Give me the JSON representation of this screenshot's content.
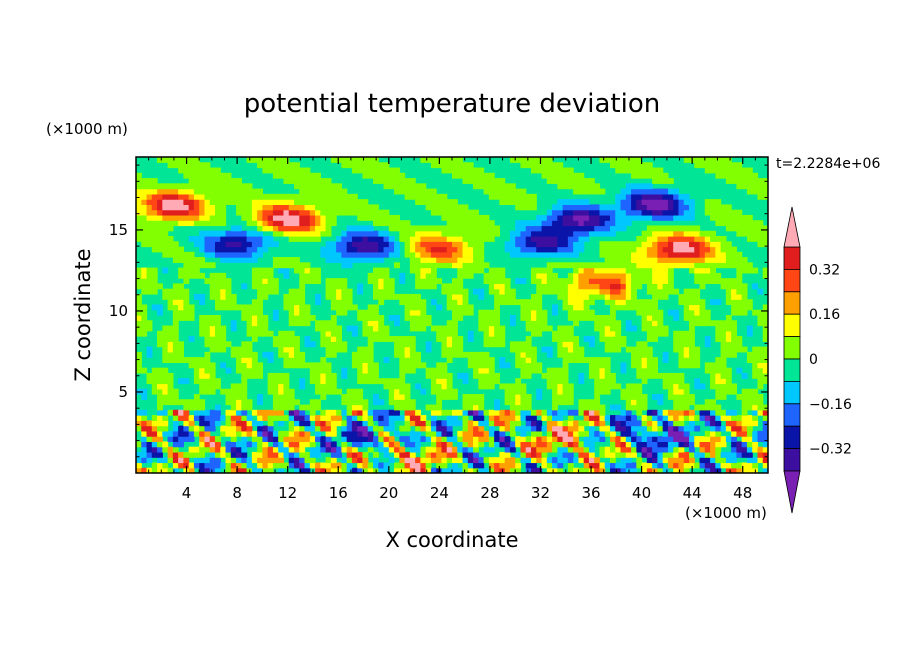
{
  "chart_data": {
    "type": "heatmap",
    "title": "potential temperature deviation",
    "xlabel": "X coordinate",
    "ylabel": "Z coordinate",
    "x_unit": "(×1000 m)",
    "y_unit": "(×1000 m)",
    "time_label": "t=2.2284e+06",
    "xlim": [
      0,
      50
    ],
    "ylim": [
      0,
      19.5
    ],
    "x_ticks": [
      4,
      8,
      12,
      16,
      20,
      24,
      28,
      32,
      36,
      40,
      44,
      48
    ],
    "y_ticks": [
      5,
      10,
      15
    ],
    "colorbar": {
      "levels": [
        -0.4,
        -0.32,
        -0.24,
        -0.16,
        -0.08,
        0,
        0.08,
        0.16,
        0.24,
        0.32,
        0.4
      ],
      "tick_values": [
        0.32,
        0.16,
        0,
        -0.16,
        -0.32
      ],
      "tick_labels": [
        "0.32",
        "0.16",
        "0",
        "−0.16",
        "−0.32"
      ],
      "colors": [
        "#7a1fb4",
        "#3c0fa0",
        "#0a14a8",
        "#1e64ff",
        "#00c8ff",
        "#00e696",
        "#82ff00",
        "#ffff00",
        "#ffa000",
        "#ff4614",
        "#e11e1e",
        "#ffaab4"
      ],
      "extend": "both"
    },
    "features": [
      {
        "x": 3,
        "z": 16.5,
        "value": 0.45
      },
      {
        "x": 12,
        "z": 15.7,
        "value": 0.45
      },
      {
        "x": 8,
        "z": 14.2,
        "value": -0.36
      },
      {
        "x": 18,
        "z": 14.0,
        "value": -0.38
      },
      {
        "x": 41,
        "z": 16.6,
        "value": -0.45
      },
      {
        "x": 35,
        "z": 15.6,
        "value": -0.42
      },
      {
        "x": 32,
        "z": 14.2,
        "value": -0.33
      },
      {
        "x": 43,
        "z": 13.8,
        "value": 0.45
      },
      {
        "x": 24,
        "z": 13.9,
        "value": 0.3
      },
      {
        "x": 37,
        "z": 11.7,
        "value": 0.3
      },
      {
        "x": 19,
        "z": 2.0,
        "value": -0.3
      },
      {
        "x": 21,
        "z": 1.2,
        "value": 0.3
      },
      {
        "x": 34,
        "z": 2.0,
        "value": 0.22
      },
      {
        "x": 41,
        "z": 2.4,
        "value": -0.3
      }
    ]
  }
}
